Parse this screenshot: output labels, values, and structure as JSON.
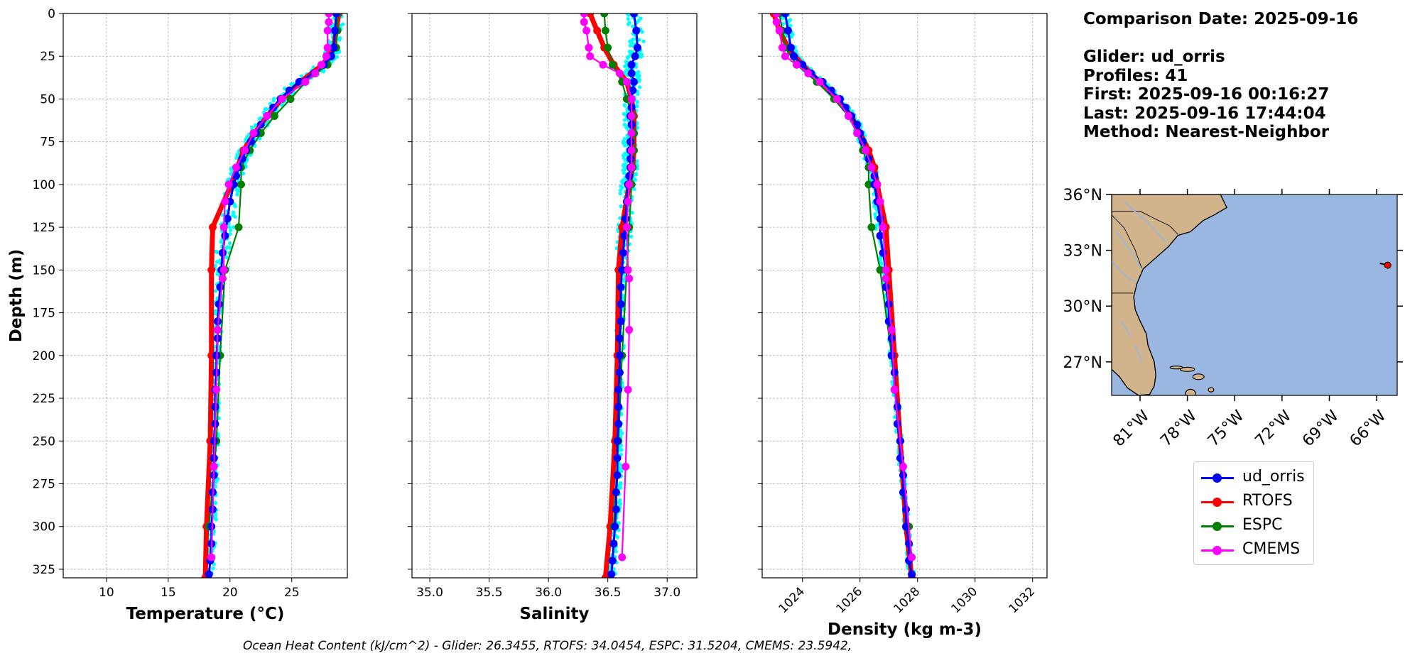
{
  "info": {
    "comparison_date": "Comparison Date: 2025-09-16",
    "glider": "Glider: ud_orris",
    "profiles": "Profiles: 41",
    "first": "First: 2025-09-16 00:16:27",
    "last": "Last: 2025-09-16 17:44:04",
    "method": "Method: Nearest-Neighbor"
  },
  "footer": "Ocean Heat Content (kJ/cm^2) - Glider: 26.3455,  RTOFS: 34.0454,  ESPC: 31.5204,  CMEMS: 23.5942,",
  "legend": [
    {
      "label": "ud_orris",
      "color": "#0000ff"
    },
    {
      "label": "RTOFS",
      "color": "#ff0000"
    },
    {
      "label": "ESPC",
      "color": "#008000"
    },
    {
      "label": "CMEMS",
      "color": "#ff00ff"
    }
  ],
  "chart_data": [
    {
      "type": "line",
      "xlabel": "Temperature (°C)",
      "ylabel": "Depth (m)",
      "xlim": [
        6.5,
        29.5
      ],
      "ylim": [
        330,
        0
      ],
      "xticks": [
        10,
        15,
        20,
        25
      ],
      "yticks": [
        0,
        25,
        50,
        75,
        100,
        125,
        150,
        175,
        200,
        225,
        250,
        275,
        300,
        325
      ],
      "grid": true,
      "glider_scatter_color": "#00ffff",
      "glider_scatter_spread": 0.6,
      "series": [
        {
          "name": "ud_orris",
          "color": "#0000ff",
          "depth": [
            0,
            10,
            20,
            25,
            30,
            35,
            40,
            45,
            50,
            55,
            60,
            65,
            70,
            75,
            80,
            85,
            90,
            95,
            100,
            110,
            120,
            130,
            140,
            150,
            160,
            170,
            180,
            190,
            200,
            210,
            220,
            230,
            240,
            250,
            260,
            270,
            280,
            290,
            300,
            310,
            320,
            328
          ],
          "values": [
            28.6,
            28.5,
            28.4,
            28.2,
            27.6,
            26.8,
            25.6,
            24.8,
            24.1,
            23.5,
            23.0,
            22.5,
            22.1,
            21.7,
            21.3,
            21.0,
            20.7,
            20.5,
            20.3,
            20.0,
            19.8,
            19.6,
            19.4,
            19.3,
            19.2,
            19.1,
            19.0,
            19.0,
            18.9,
            18.9,
            18.8,
            18.8,
            18.8,
            18.7,
            18.7,
            18.7,
            18.6,
            18.6,
            18.5,
            18.5,
            18.4,
            18.3
          ]
        },
        {
          "name": "RTOFS",
          "color": "#ff0000",
          "depth": [
            0,
            10,
            20,
            30,
            40,
            50,
            60,
            70,
            80,
            90,
            100,
            125,
            150,
            200,
            250,
            300,
            330
          ],
          "values": [
            28.8,
            28.6,
            28.4,
            27.5,
            25.7,
            24.2,
            23.0,
            22.0,
            21.1,
            20.6,
            20.1,
            18.6,
            18.5,
            18.5,
            18.4,
            18.1,
            18.0
          ]
        },
        {
          "name": "ESPC",
          "color": "#008000",
          "depth": [
            0,
            10,
            20,
            30,
            40,
            50,
            60,
            70,
            80,
            90,
            100,
            125,
            150,
            200,
            250,
            300
          ],
          "values": [
            28.7,
            28.7,
            28.6,
            27.9,
            26.1,
            24.9,
            23.6,
            22.5,
            21.6,
            20.9,
            20.9,
            20.7,
            19.6,
            19.2,
            18.9,
            18.3
          ]
        },
        {
          "name": "CMEMS",
          "color": "#ff00ff",
          "depth": [
            0,
            5,
            10,
            20,
            25,
            30,
            35,
            40,
            50,
            60,
            70,
            80,
            90,
            100,
            110,
            125,
            150,
            155,
            185,
            220,
            265,
            318
          ],
          "values": [
            28.0,
            28.0,
            27.9,
            27.9,
            27.8,
            27.4,
            26.9,
            26.1,
            24.2,
            23.0,
            21.9,
            21.2,
            20.5,
            19.9,
            19.6,
            19.5,
            19.5,
            19.4,
            19.0,
            18.9,
            18.7,
            18.5
          ]
        }
      ]
    },
    {
      "type": "line",
      "xlabel": "Salinity",
      "xlim": [
        34.85,
        37.25
      ],
      "ylim": [
        330,
        0
      ],
      "xticks": [
        35.0,
        35.5,
        36.0,
        36.5,
        37.0
      ],
      "grid": true,
      "glider_scatter_color": "#00ffff",
      "glider_scatter_spread": 0.06,
      "series": [
        {
          "name": "ud_orris",
          "color": "#0000ff",
          "depth": [
            0,
            10,
            20,
            25,
            30,
            35,
            40,
            45,
            50,
            55,
            60,
            65,
            70,
            75,
            80,
            85,
            90,
            95,
            100,
            110,
            120,
            130,
            140,
            150,
            160,
            170,
            180,
            190,
            200,
            210,
            220,
            230,
            240,
            250,
            260,
            270,
            280,
            290,
            300,
            310,
            320,
            328
          ],
          "values": [
            36.72,
            36.74,
            36.75,
            36.73,
            36.7,
            36.7,
            36.72,
            36.71,
            36.7,
            36.7,
            36.69,
            36.7,
            36.7,
            36.69,
            36.69,
            36.69,
            36.69,
            36.68,
            36.67,
            36.66,
            36.65,
            36.64,
            36.63,
            36.62,
            36.61,
            36.61,
            36.61,
            36.6,
            36.6,
            36.6,
            36.59,
            36.59,
            36.59,
            36.58,
            36.58,
            36.58,
            36.57,
            36.57,
            36.56,
            36.55,
            36.54,
            36.53
          ]
        },
        {
          "name": "RTOFS",
          "color": "#ff0000",
          "depth": [
            0,
            10,
            20,
            30,
            40,
            50,
            60,
            70,
            80,
            90,
            100,
            125,
            150,
            200,
            250,
            300,
            330
          ],
          "values": [
            36.35,
            36.41,
            36.47,
            36.55,
            36.66,
            36.7,
            36.72,
            36.72,
            36.72,
            36.71,
            36.68,
            36.62,
            36.59,
            36.58,
            36.56,
            36.52,
            36.48
          ]
        },
        {
          "name": "ESPC",
          "color": "#008000",
          "depth": [
            0,
            10,
            20,
            30,
            40,
            50,
            60,
            70,
            80,
            90,
            100,
            125,
            150,
            200,
            250,
            300
          ],
          "values": [
            36.47,
            36.48,
            36.5,
            36.54,
            36.62,
            36.66,
            36.71,
            36.72,
            36.72,
            36.71,
            36.7,
            36.68,
            36.66,
            36.62,
            36.59,
            36.55
          ]
        },
        {
          "name": "CMEMS",
          "color": "#ff00ff",
          "depth": [
            0,
            5,
            10,
            20,
            25,
            30,
            35,
            40,
            50,
            60,
            70,
            80,
            90,
            100,
            110,
            125,
            150,
            155,
            185,
            220,
            265,
            318
          ],
          "values": [
            36.3,
            36.3,
            36.32,
            36.34,
            36.35,
            36.46,
            36.6,
            36.66,
            36.7,
            36.7,
            36.7,
            36.7,
            36.7,
            36.68,
            36.67,
            36.66,
            36.67,
            36.68,
            36.68,
            36.67,
            36.65,
            36.62
          ]
        }
      ]
    },
    {
      "type": "line",
      "xlabel": "Density (kg m-3)",
      "xlim": [
        1022.6,
        1032.5
      ],
      "ylim": [
        330,
        0
      ],
      "xticks": [
        1024,
        1026,
        1028,
        1030,
        1032
      ],
      "grid": true,
      "glider_scatter_color": "#00ffff",
      "glider_scatter_spread": 0.15,
      "series": [
        {
          "name": "ud_orris",
          "color": "#0000ff",
          "depth": [
            0,
            10,
            20,
            25,
            30,
            35,
            40,
            45,
            50,
            55,
            60,
            65,
            70,
            75,
            80,
            85,
            90,
            95,
            100,
            110,
            120,
            130,
            140,
            150,
            160,
            170,
            180,
            190,
            200,
            210,
            220,
            230,
            240,
            250,
            260,
            270,
            280,
            290,
            300,
            310,
            320,
            328
          ],
          "values": [
            1023.4,
            1023.5,
            1023.6,
            1023.7,
            1024.0,
            1024.3,
            1024.7,
            1025.0,
            1025.3,
            1025.5,
            1025.7,
            1025.9,
            1026.0,
            1026.1,
            1026.2,
            1026.3,
            1026.4,
            1026.5,
            1026.5,
            1026.6,
            1026.7,
            1026.7,
            1026.8,
            1026.9,
            1026.9,
            1027.0,
            1027.0,
            1027.1,
            1027.1,
            1027.2,
            1027.2,
            1027.3,
            1027.3,
            1027.4,
            1027.4,
            1027.5,
            1027.5,
            1027.6,
            1027.6,
            1027.7,
            1027.7,
            1027.8
          ]
        },
        {
          "name": "RTOFS",
          "color": "#ff0000",
          "depth": [
            0,
            10,
            20,
            30,
            40,
            50,
            60,
            70,
            80,
            90,
            100,
            125,
            150,
            200,
            250,
            300,
            330
          ],
          "values": [
            1023.0,
            1023.2,
            1023.5,
            1024.0,
            1024.6,
            1025.2,
            1025.7,
            1026.0,
            1026.3,
            1026.5,
            1026.6,
            1026.9,
            1027.0,
            1027.2,
            1027.4,
            1027.6,
            1027.8
          ]
        },
        {
          "name": "ESPC",
          "color": "#008000",
          "depth": [
            0,
            10,
            20,
            30,
            40,
            50,
            60,
            70,
            80,
            90,
            100,
            125,
            150,
            200,
            250,
            300
          ],
          "values": [
            1023.2,
            1023.3,
            1023.4,
            1023.8,
            1024.5,
            1025.1,
            1025.6,
            1025.9,
            1026.1,
            1026.3,
            1026.3,
            1026.4,
            1026.7,
            1027.1,
            1027.4,
            1027.7
          ]
        },
        {
          "name": "CMEMS",
          "color": "#ff00ff",
          "depth": [
            0,
            5,
            10,
            20,
            25,
            30,
            35,
            40,
            50,
            60,
            70,
            80,
            90,
            100,
            110,
            125,
            150,
            155,
            185,
            220,
            265,
            318
          ],
          "values": [
            1023.1,
            1023.1,
            1023.2,
            1023.3,
            1023.4,
            1023.8,
            1024.2,
            1024.6,
            1025.2,
            1025.6,
            1025.9,
            1026.2,
            1026.4,
            1026.6,
            1026.7,
            1026.8,
            1026.9,
            1026.9,
            1027.1,
            1027.2,
            1027.5,
            1027.8
          ]
        }
      ]
    },
    {
      "type": "map",
      "lat_ticks": [
        "36°N",
        "33°N",
        "30°N",
        "27°N"
      ],
      "lat_values": [
        36,
        33,
        30,
        27
      ],
      "lon_ticks": [
        "81°W",
        "78°W",
        "75°W",
        "72°W",
        "69°W",
        "66°W"
      ],
      "lon_values": [
        -81,
        -78,
        -75,
        -72,
        -69,
        -66
      ],
      "extent": [
        -82.8,
        -64.7,
        25.2,
        36.0
      ],
      "ocean_color": "#9ab7e1",
      "land_color": "#d2b48c",
      "glider_position": {
        "lon": -65.3,
        "lat": 32.2,
        "color": "#ff0000"
      }
    }
  ]
}
